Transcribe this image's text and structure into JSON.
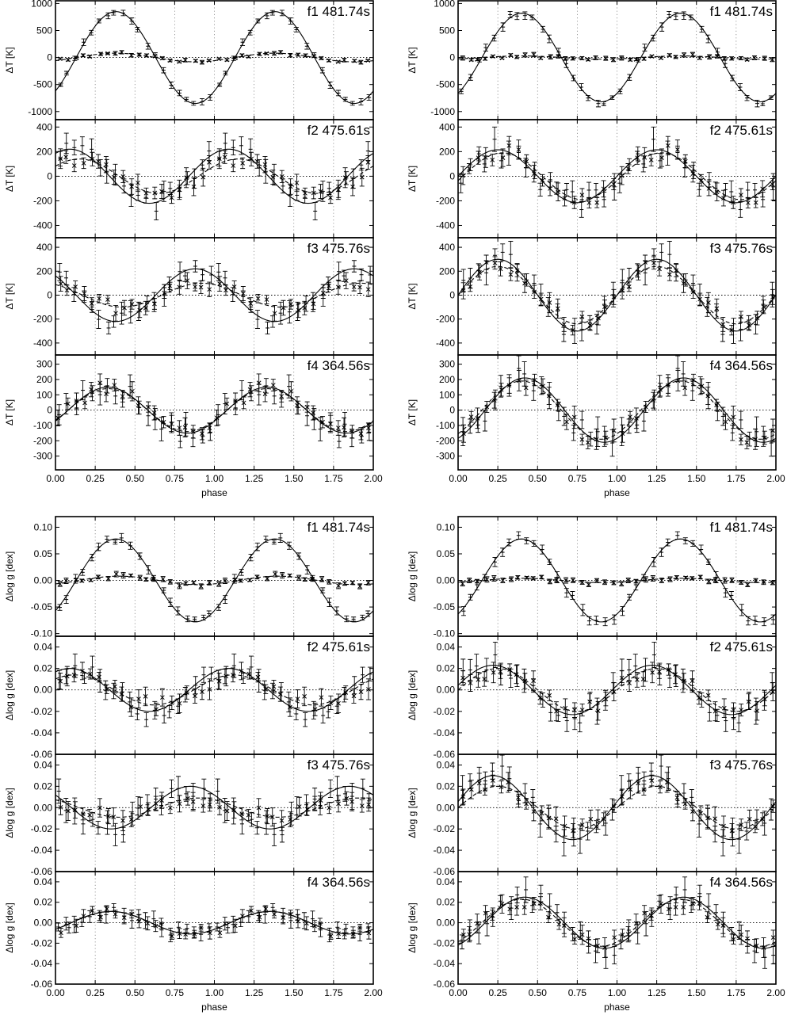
{
  "figure": {
    "xlabel": "phase",
    "x_ticks": [
      "0.00",
      "0.25",
      "0.50",
      "0.75",
      "1.00",
      "1.25",
      "1.50",
      "1.75",
      "2.00"
    ],
    "ylabel_T": "ΔT [K]",
    "ylabel_g": "Δlog g [dex]"
  },
  "chart_data": [
    {
      "id": "T-left-f1",
      "type": "scatter",
      "block": "T",
      "col": "left",
      "row": 0,
      "title": "f1 481.74s",
      "ylim": [
        -1150,
        1050
      ],
      "yticks": [
        -1000,
        -500,
        0,
        500,
        1000
      ],
      "A1": 850,
      "ph1": 0.38,
      "A2": 80,
      "ph2": 0.38,
      "err1": 45,
      "err2": 25,
      "seed": 11
    },
    {
      "id": "T-left-f2",
      "type": "scatter",
      "block": "T",
      "col": "left",
      "row": 1,
      "title": "f2 475.61s",
      "ylim": [
        -500,
        460
      ],
      "yticks": [
        -400,
        -200,
        0,
        200,
        400
      ],
      "A1": 220,
      "ph1": 0.09,
      "A2": 140,
      "ph2": 0.15,
      "err1": 70,
      "err2": 60,
      "seed": 12
    },
    {
      "id": "T-left-f3",
      "type": "scatter",
      "block": "T",
      "col": "left",
      "row": 2,
      "title": "f3 475.76s",
      "ylim": [
        -500,
        480
      ],
      "yticks": [
        -400,
        -200,
        0,
        200,
        400
      ],
      "A1": 220,
      "ph1": 0.88,
      "A2": 100,
      "ph2": 0.92,
      "err1": 70,
      "err2": 50,
      "seed": 13
    },
    {
      "id": "T-left-f4",
      "type": "scatter",
      "block": "T",
      "col": "left",
      "row": 3,
      "title": "f4 364.56s",
      "ylim": [
        -390,
        360
      ],
      "yticks": [
        -300,
        -200,
        -100,
        0,
        100,
        200,
        300
      ],
      "A1": 150,
      "ph1": 0.33,
      "A2": 140,
      "ph2": 0.33,
      "err1": 55,
      "err2": 45,
      "seed": 14
    },
    {
      "id": "T-right-f1",
      "type": "scatter",
      "block": "T",
      "col": "right",
      "row": 0,
      "title": "f1 481.74s",
      "ylim": [
        -1150,
        1050
      ],
      "yticks": [
        -1000,
        -500,
        0,
        500,
        1000
      ],
      "A1": 820,
      "ph1": 0.4,
      "A2": 30,
      "ph2": 0.4,
      "err1": 55,
      "err2": 30,
      "seed": 21
    },
    {
      "id": "T-right-f2",
      "type": "scatter",
      "block": "T",
      "col": "right",
      "row": 1,
      "title": "f2 475.61s",
      "ylim": [
        -500,
        460
      ],
      "yticks": [
        -400,
        -200,
        0,
        200,
        400
      ],
      "A1": 215,
      "ph1": 0.25,
      "A2": 190,
      "ph2": 0.28,
      "err1": 80,
      "err2": 60,
      "seed": 22
    },
    {
      "id": "T-right-f3",
      "type": "scatter",
      "block": "T",
      "col": "right",
      "row": 2,
      "title": "f3 475.76s",
      "ylim": [
        -500,
        480
      ],
      "yticks": [
        -400,
        -200,
        0,
        200,
        400
      ],
      "A1": 300,
      "ph1": 0.25,
      "A2": 240,
      "ph2": 0.25,
      "err1": 80,
      "err2": 60,
      "seed": 23
    },
    {
      "id": "T-right-f4",
      "type": "scatter",
      "block": "T",
      "col": "right",
      "row": 3,
      "title": "f4 364.56s",
      "ylim": [
        -390,
        360
      ],
      "yticks": [
        -300,
        -200,
        -100,
        0,
        100,
        200,
        300
      ],
      "A1": 210,
      "ph1": 0.42,
      "A2": 190,
      "ph2": 0.4,
      "err1": 70,
      "err2": 55,
      "seed": 24
    },
    {
      "id": "g-left-f1",
      "type": "scatter",
      "block": "g",
      "col": "left",
      "row": 0,
      "title": "f1 481.74s",
      "ylim": [
        -0.105,
        0.12
      ],
      "yticks": [
        -0.1,
        -0.05,
        0.0,
        0.05,
        0.1
      ],
      "A1": 0.078,
      "ph1": 0.38,
      "A2": 0.008,
      "ph2": 0.4,
      "err1": 0.006,
      "err2": 0.004,
      "seed": 31
    },
    {
      "id": "g-left-f2",
      "type": "scatter",
      "block": "g",
      "col": "left",
      "row": 1,
      "title": "f2 475.61s",
      "ylim": [
        -0.06,
        0.05
      ],
      "yticks": [
        -0.06,
        -0.04,
        -0.02,
        0.0,
        0.02,
        0.04
      ],
      "A1": 0.02,
      "ph1": 0.09,
      "A2": 0.014,
      "ph2": 0.12,
      "err1": 0.008,
      "err2": 0.007,
      "seed": 32
    },
    {
      "id": "g-left-f3",
      "type": "scatter",
      "block": "g",
      "col": "left",
      "row": 2,
      "title": "f3 475.76s",
      "ylim": [
        -0.06,
        0.05
      ],
      "yticks": [
        -0.06,
        -0.04,
        -0.02,
        0.0,
        0.02,
        0.04
      ],
      "A1": 0.02,
      "ph1": 0.85,
      "A2": 0.009,
      "ph2": 0.9,
      "err1": 0.009,
      "err2": 0.007,
      "seed": 33
    },
    {
      "id": "g-left-f4",
      "type": "scatter",
      "block": "g",
      "col": "left",
      "row": 3,
      "title": "f4 364.56s",
      "ylim": [
        -0.06,
        0.05
      ],
      "yticks": [
        -0.06,
        -0.04,
        -0.02,
        0.0,
        0.02,
        0.04
      ],
      "A1": 0.011,
      "ph1": 0.35,
      "A2": 0.011,
      "ph2": 0.35,
      "err1": 0.006,
      "err2": 0.005,
      "seed": 34
    },
    {
      "id": "g-right-f1",
      "type": "scatter",
      "block": "g",
      "col": "right",
      "row": 0,
      "title": "f1 481.74s",
      "ylim": [
        -0.105,
        0.12
      ],
      "yticks": [
        -0.1,
        -0.05,
        0.0,
        0.05,
        0.1
      ],
      "A1": 0.078,
      "ph1": 0.4,
      "A2": 0.004,
      "ph2": 0.4,
      "err1": 0.008,
      "err2": 0.004,
      "seed": 41
    },
    {
      "id": "g-right-f2",
      "type": "scatter",
      "block": "g",
      "col": "right",
      "row": 1,
      "title": "f2 475.61s",
      "ylim": [
        -0.06,
        0.05
      ],
      "yticks": [
        -0.06,
        -0.04,
        -0.02,
        0.0,
        0.02,
        0.04
      ],
      "A1": 0.023,
      "ph1": 0.22,
      "A2": 0.02,
      "ph2": 0.25,
      "err1": 0.009,
      "err2": 0.007,
      "seed": 42
    },
    {
      "id": "g-right-f3",
      "type": "scatter",
      "block": "g",
      "col": "right",
      "row": 2,
      "title": "f3 475.76s",
      "ylim": [
        -0.06,
        0.05
      ],
      "yticks": [
        -0.06,
        -0.04,
        -0.02,
        0.0,
        0.02,
        0.04
      ],
      "A1": 0.03,
      "ph1": 0.22,
      "A2": 0.02,
      "ph2": 0.25,
      "err1": 0.01,
      "err2": 0.008,
      "seed": 43
    },
    {
      "id": "g-right-f4",
      "type": "scatter",
      "block": "g",
      "col": "right",
      "row": 3,
      "title": "f4 364.56s",
      "ylim": [
        -0.06,
        0.05
      ],
      "yticks": [
        -0.06,
        -0.04,
        -0.02,
        0.0,
        0.02,
        0.04
      ],
      "A1": 0.025,
      "ph1": 0.42,
      "A2": 0.023,
      "ph2": 0.4,
      "err1": 0.009,
      "err2": 0.007,
      "seed": 44
    }
  ]
}
